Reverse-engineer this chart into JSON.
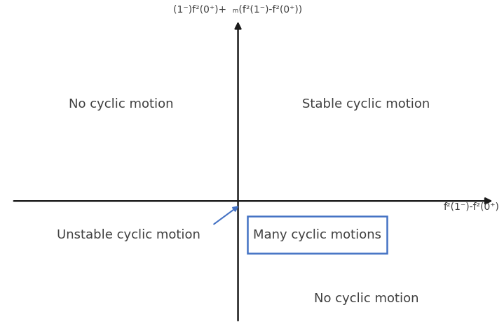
{
  "background_color": "#ffffff",
  "axis_color": "#1a1a1a",
  "text_color": "#404040",
  "blue_color": "#4472c4",
  "fig_width": 7.19,
  "fig_height": 4.77,
  "y_axis_label": "(1⁻)f²(0⁺)+  ₘ(f²(1⁻)-f²(0⁺))",
  "x_axis_label": "f²(1⁻)-f²(0⁺)",
  "Q2_label": "No cyclic motion",
  "Q1_label": "Stable cyclic motion",
  "Q3_label": "Unstable cyclic motion",
  "Q4_label": "No cyclic motion",
  "box_label": "Many cyclic motions",
  "font_size_labels": 13,
  "font_size_axis_label": 10,
  "font_size_box": 13
}
